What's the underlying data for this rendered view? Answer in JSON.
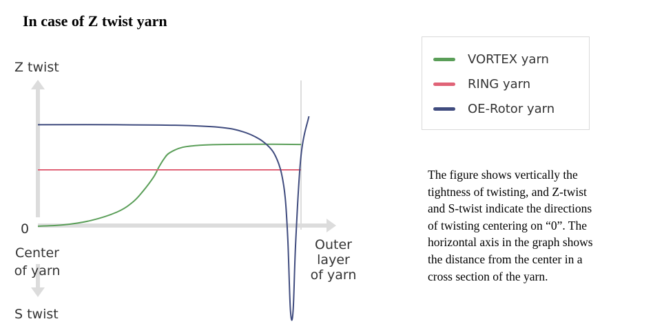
{
  "heading": "In case of Z twist yarn",
  "description": "The figure shows vertically the\ntightness of twisting, and Z-twist\nand S-twist indicate the directions\nof twisting centering on “0”. The\nhorizontal axis in the graph shows\nthe distance from the center in a\ncross section of the yarn.",
  "chart_data": {
    "type": "line",
    "title": "In case of Z twist yarn",
    "y_axis": {
      "top_label": "Z twist",
      "zero_label": "0",
      "bottom_label": "S twist"
    },
    "x_axis": {
      "start_label": [
        "Center",
        "of yarn"
      ],
      "end_label": [
        "Outer",
        "layer",
        "of yarn"
      ]
    },
    "xlim": [
      0,
      1
    ],
    "ylim": [
      -1,
      1
    ],
    "legend_position": "top-right",
    "series": [
      {
        "name": "VORTEX yarn",
        "color": "#5a9e58",
        "x": [
          0,
          0.1,
          0.2,
          0.3,
          0.36,
          0.4,
          0.44,
          0.46,
          0.48,
          0.5,
          0.55,
          0.62,
          0.7,
          0.85,
          1
        ],
        "y": [
          0,
          0.01,
          0.04,
          0.1,
          0.17,
          0.25,
          0.35,
          0.42,
          0.48,
          0.52,
          0.56,
          0.575,
          0.58,
          0.582,
          0.58
        ]
      },
      {
        "name": "RING yarn",
        "color": "#e06377",
        "x": [
          0,
          1
        ],
        "y": [
          0.4,
          0.4
        ]
      },
      {
        "name": "OE-Rotor yarn",
        "color": "#3f4b7e",
        "x": [
          0,
          0.3,
          0.55,
          0.7,
          0.78,
          0.84,
          0.88,
          0.905,
          0.925,
          0.94,
          0.95,
          0.96,
          0.97,
          0.98,
          1,
          1.03
        ],
        "y": [
          0.72,
          0.72,
          0.715,
          0.7,
          0.67,
          0.62,
          0.56,
          0.49,
          0.38,
          0.2,
          -0.1,
          -0.6,
          -0.6,
          -0.1,
          0.5,
          0.78
        ]
      }
    ]
  }
}
